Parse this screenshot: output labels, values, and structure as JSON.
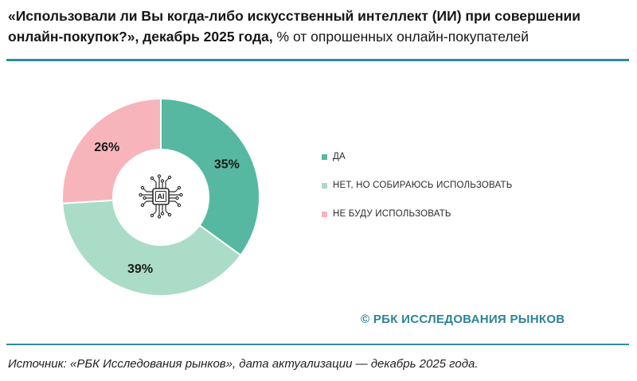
{
  "title": {
    "bold": "«Использовали ли Вы когда-либо искусственный интеллект (ИИ) при совершении онлайн-покупок?», декабрь 2025 года,",
    "regular": " % от опрошенных онлайн-покупателей"
  },
  "chart_data": {
    "type": "pie",
    "subtype": "donut",
    "title": "Использовали ли Вы когда-либо искусственный интеллект (ИИ) при совершении онлайн-покупок?",
    "period": "декабрь 2025 года",
    "unit": "%",
    "categories": [
      "ДА",
      "НЕТ, НО СОБИРАЮСЬ ИСПОЛЬЗОВАТЬ",
      "НЕ БУДУ ИСПОЛЬЗОВАТЬ"
    ],
    "values": [
      35,
      39,
      26
    ],
    "labels": [
      "35%",
      "39%",
      "26%"
    ],
    "colors": [
      "#56B8A0",
      "#AADCC7",
      "#F8B4BB"
    ],
    "start_angle_deg": 0,
    "direction": "clockwise",
    "legend_position": "right",
    "center_icon": "ai-chip-icon"
  },
  "legend": {
    "items": [
      {
        "label": "ДА",
        "color": "#56B8A0"
      },
      {
        "label": "НЕТ, НО СОБИРАЮСЬ ИСПОЛЬЗОВАТЬ",
        "color": "#AADCC7"
      },
      {
        "label": "НЕ БУДУ ИСПОЛЬЗОВАТЬ",
        "color": "#F8B4BB"
      }
    ]
  },
  "copyright": "© РБК ИССЛЕДОВАНИЯ РЫНКОВ",
  "source": "Источник: «РБК Исследования рынков», дата актуализации — декабрь 2025 года.",
  "colors": {
    "rule_teal": "#2F8B9B",
    "brand_teal": "#2D8396",
    "label_dark": "#1a1a1a"
  }
}
